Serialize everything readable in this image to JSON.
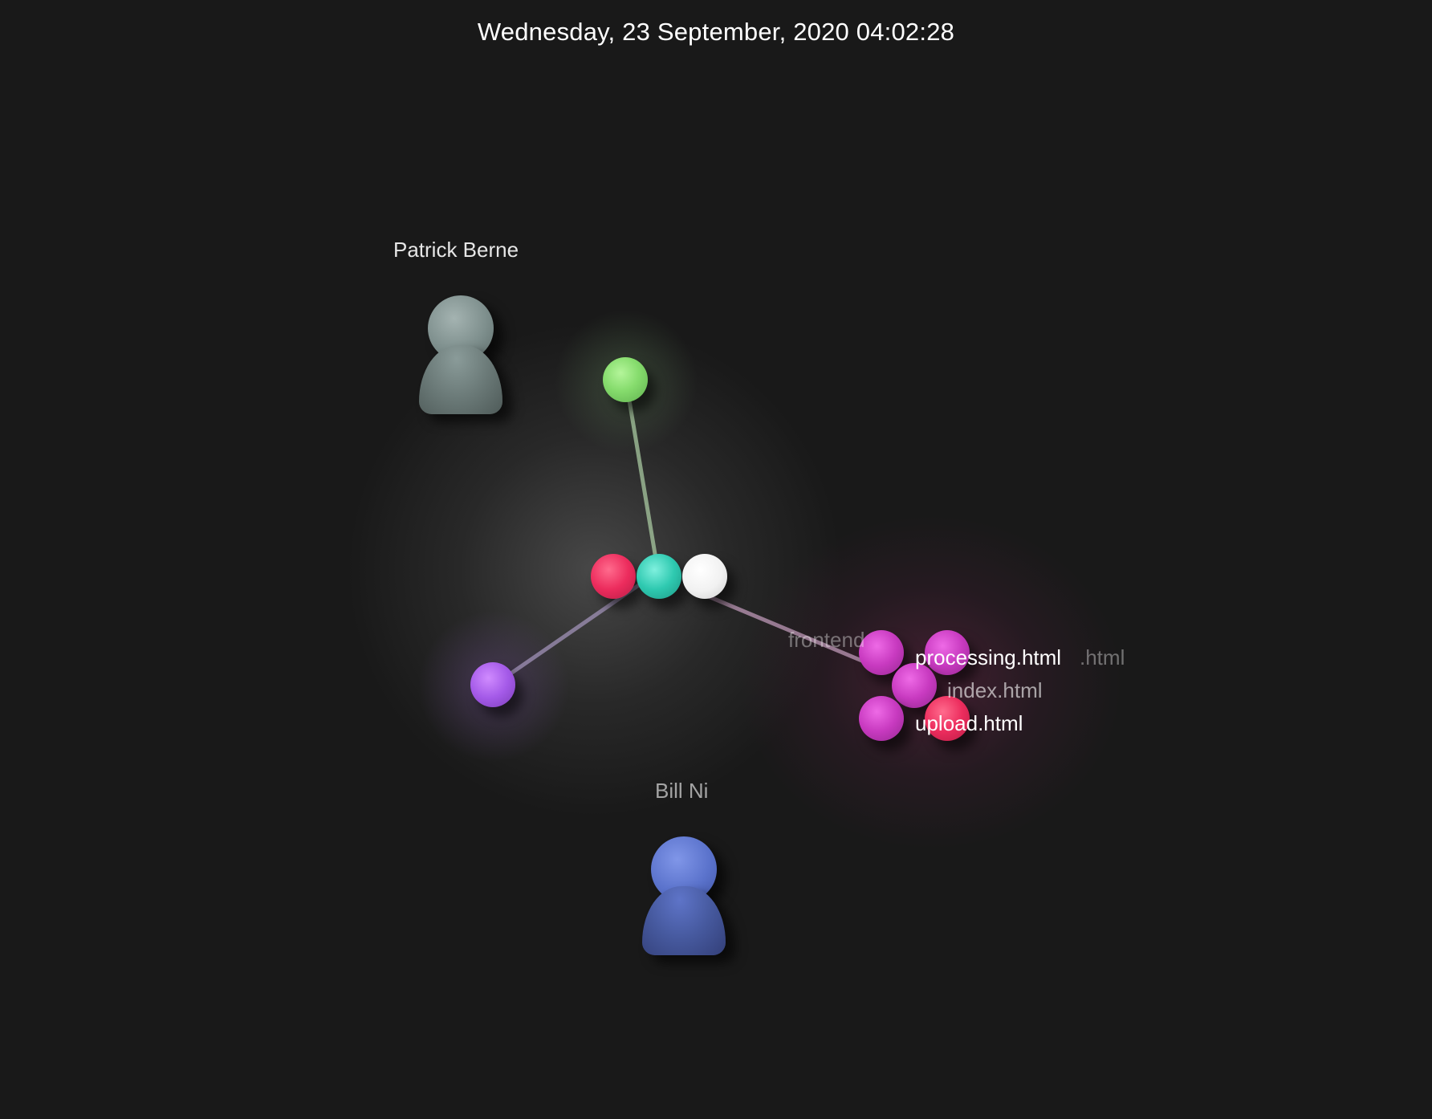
{
  "date_label": "Wednesday, 23 September, 2020 04:02:28",
  "users": [
    {
      "name": "Patrick Berne",
      "color": "#7e8f8d",
      "icon": "user-avatar-icon"
    },
    {
      "name": "Bill Ni",
      "color": "#5b73cc",
      "icon": "user-avatar-icon"
    }
  ],
  "directories": [
    {
      "name": "frontend"
    }
  ],
  "files": [
    {
      "name": "processing.html",
      "color": "#c83ac0"
    },
    {
      "name": "index.html",
      "color": "#c83ac0"
    },
    {
      "name": "upload.html",
      "color": "#c83ac0"
    },
    {
      "name": ".html",
      "color": "#c83ac0"
    }
  ],
  "colors": {
    "background": "#191919",
    "green_node": "#86dc6d",
    "red_node": "#ec2c5d",
    "teal_node": "#2ec9b0",
    "white_node": "#f1f1f1",
    "purple_node": "#a45ae8",
    "magenta_node": "#c83ac0"
  }
}
